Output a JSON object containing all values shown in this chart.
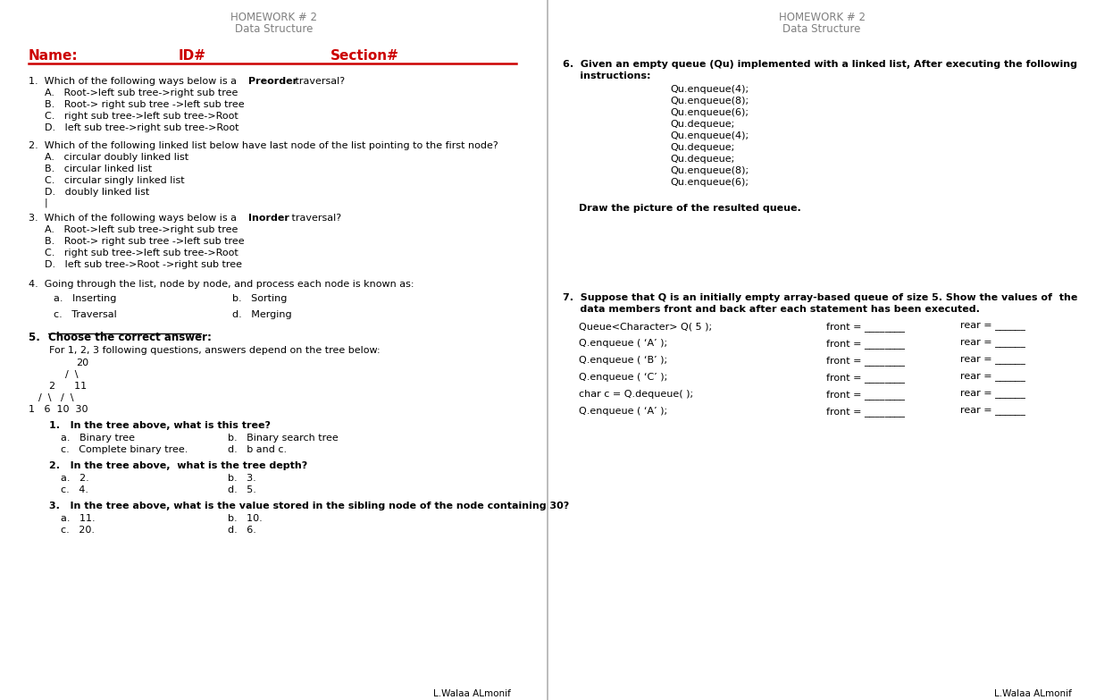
{
  "bg_color": "#ffffff",
  "header_color": "#808080",
  "red_color": "#cc0000",
  "black_color": "#000000",
  "left": {
    "header1": "HOMEWORK # 2",
    "header2": "Data Structure",
    "name_label": "Name:",
    "id_label": "ID#",
    "section_label": "Section#",
    "q1_intro": "1.  Which of the following ways below is a ",
    "q1_bold": "Preorder",
    "q1_rest": " traversal?",
    "q1_a": "A.   Root->left sub tree->right sub tree",
    "q1_b": "B.   Root-> right sub tree ->left sub tree",
    "q1_c": "C.   right sub tree->left sub tree->Root",
    "q1_d": "D.   left sub tree->right sub tree->Root",
    "q2_title": "2.  Which of the following linked list below have last node of the list pointing to the first node?",
    "q2_a": "A.   circular doubly linked list",
    "q2_b": "B.   circular linked list",
    "q2_c": "C.   circular singly linked list",
    "q2_d": "D.   doubly linked list",
    "q3_intro": "3.  Which of the following ways below is a ",
    "q3_bold": "Inorder",
    "q3_rest": " traversal?",
    "q3_a": "A.   Root->left sub tree->right sub tree",
    "q3_b": "B.   Root-> right sub tree ->left sub tree",
    "q3_c": "C.   right sub tree->left sub tree->Root",
    "q3_d": "D.   left sub tree->Root ->right sub tree",
    "q4_title": "4.  Going through the list, node by node, and process each node is known as:",
    "q4_a": "a.   Inserting",
    "q4_b": "b.   Sorting",
    "q4_c": "c.   Traversal",
    "q4_d": "d.   Merging",
    "q5_head": "5.  Choose the correct answer:",
    "q5_intro": "For 1, 2, 3 following questions, answers depend on the tree below:",
    "q5_1": "1.   In the tree above, what is this tree?",
    "q5_1a": "a.   Binary tree",
    "q5_1b": "b.   Binary search tree",
    "q5_1c": "c.   Complete binary tree.",
    "q5_1d": "d.   b and c.",
    "q5_2": "2.   In the tree above,  what is the tree depth?",
    "q5_2a": "a.   2.",
    "q5_2b": "b.   3.",
    "q5_2c": "c.   4.",
    "q5_2d": "d.   5.",
    "q5_3": "3.   In the tree above, what is the value stored in the sibling node of the node containing 30?",
    "q5_3a": "a.   11.",
    "q5_3b": "b.   10.",
    "q5_3c": "c.   20.",
    "q5_3d": "d.   6.",
    "footer": "L.Walaa ALmonif"
  },
  "right": {
    "header1": "HOMEWORK # 2",
    "header2": "Data Structure",
    "q6_line1": "6.  Given an empty queue (Qu) implemented with a linked list, After executing the following",
    "q6_line2": "     instructions:",
    "q6_instructions": [
      "Qu.enqueue(4);",
      "Qu.enqueue(8);",
      "Qu.enqueue(6);",
      "Qu.dequeue;",
      "Qu.enqueue(4);",
      "Qu.dequeue;",
      "Qu.dequeue;",
      "Qu.enqueue(8);",
      "Qu.enqueue(6);"
    ],
    "q6_draw": "Draw the picture of the resulted queue.",
    "q7_line1": "7.  Suppose that Q is an initially empty array-based queue of size 5. Show the values of  the",
    "q7_line2": "     data members front and back after each statement has been executed.",
    "q7_rows": [
      [
        "Queue<Character> Q( 5 );",
        "front = ________",
        "rear = ______"
      ],
      [
        "Q.enqueue ( ‘A’ );",
        "front = ________",
        "rear = ______"
      ],
      [
        "Q.enqueue ( ‘B’ );",
        "front = ________",
        "rear = ______"
      ],
      [
        "Q.enqueue ( ‘C’ );",
        "front = ________",
        "rear = ______"
      ],
      [
        "char c = Q.dequeue( );",
        "front = ________",
        "rear = ______"
      ],
      [
        "Q.enqueue ( ‘A’ );",
        "front = ________",
        "rear = ______"
      ]
    ],
    "footer": "L.Walaa ALmonif"
  }
}
